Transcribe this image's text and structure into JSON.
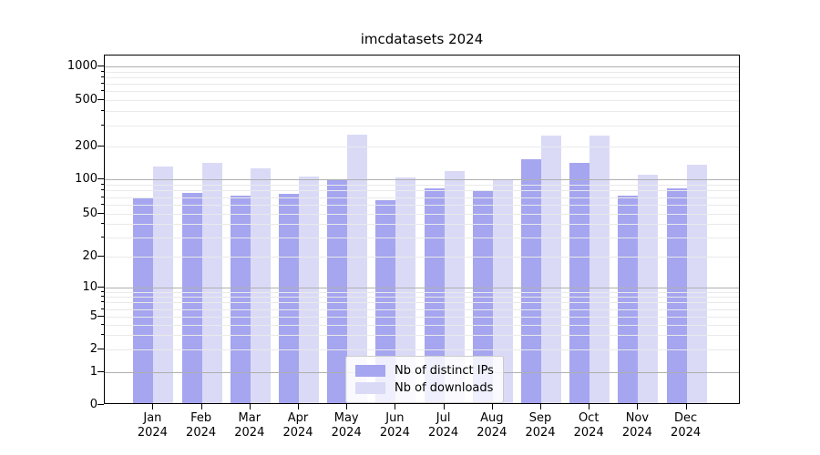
{
  "title": "imcdatasets 2024",
  "chart_data": {
    "type": "bar",
    "title": "imcdatasets 2024",
    "y_scale": "symlog",
    "ylabel": "",
    "xlabel": "",
    "grid": true,
    "legend_position": "lower center",
    "y_ticks": [
      0,
      1,
      2,
      5,
      10,
      20,
      50,
      100,
      200,
      500,
      1000
    ],
    "y_minor_gridlines": [
      3,
      4,
      6,
      7,
      8,
      9,
      30,
      40,
      60,
      70,
      80,
      90,
      300,
      400,
      600,
      700,
      800,
      900
    ],
    "x_months": [
      "Jan",
      "Feb",
      "Mar",
      "Apr",
      "May",
      "Jun",
      "Jul",
      "Aug",
      "Sep",
      "Oct",
      "Nov",
      "Dec"
    ],
    "x_year": "2024",
    "series": [
      {
        "name": "Nb of distinct IPs",
        "color": "#a5a5f0",
        "values": [
          67,
          74,
          69,
          72,
          96,
          63,
          80,
          76,
          148,
          136,
          70,
          80
        ]
      },
      {
        "name": "Nb of downloads",
        "color": "#dadaf7",
        "values": [
          127,
          135,
          121,
          102,
          245,
          100,
          115,
          95,
          240,
          240,
          105,
          132
        ]
      }
    ],
    "colors": {
      "major_grid": "#b0b0b0",
      "minor_grid": "#eaeaea",
      "axis": "#000000",
      "background": "#ffffff"
    }
  }
}
